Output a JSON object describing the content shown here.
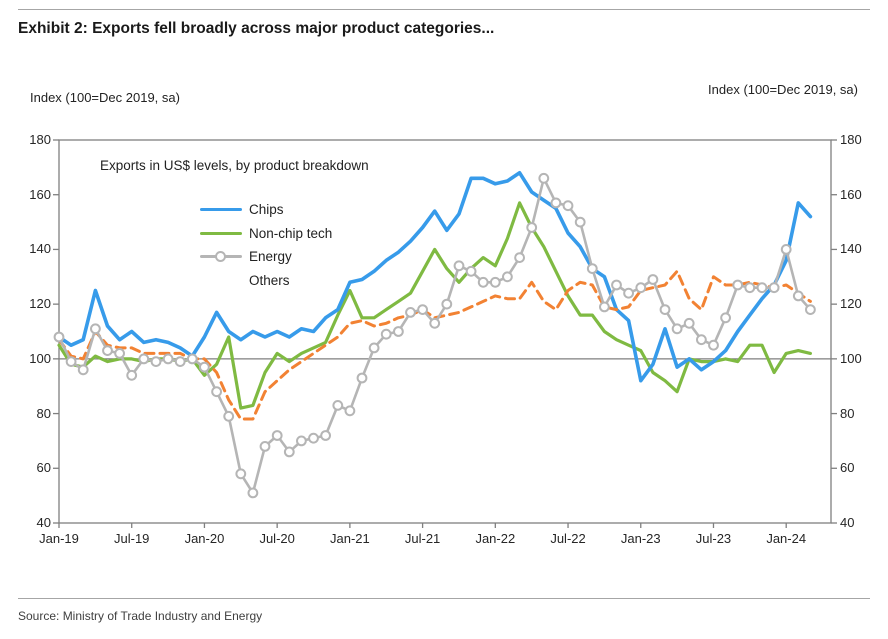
{
  "title": "Exhibit 2: Exports fell broadly across major product categories...",
  "axis_label_left": "Index (100=Dec 2019, sa)",
  "axis_label_right": "Index (100=Dec 2019, sa)",
  "subtitle": "Exports in US$ levels, by product breakdown",
  "source": "Source: Ministry of Trade Industry and Energy",
  "colors": {
    "chips": "#379bea",
    "non_chip_tech": "#7fba42",
    "energy": "#b5b5b5",
    "others": "#f28233",
    "axis": "#7f7f7f",
    "reference_line": "#7f7f7f",
    "text": "#262626"
  },
  "chart_data": {
    "type": "line",
    "title": "Exports in US$ levels, by product breakdown",
    "xlabel": "",
    "ylabel": "Index (100=Dec 2019, sa)",
    "ylim": [
      40,
      180
    ],
    "yticks": [
      40,
      60,
      80,
      100,
      120,
      140,
      160,
      180
    ],
    "reference_line": 100,
    "grid": false,
    "legend_position": "inside-top-left",
    "xticks": [
      "Jan-19",
      "Jul-19",
      "Jan-20",
      "Jul-20",
      "Jan-21",
      "Jul-21",
      "Jan-22",
      "Jul-22",
      "Jan-23",
      "Jul-23",
      "Jan-24"
    ],
    "xtick_month_index": [
      0,
      6,
      12,
      18,
      24,
      30,
      36,
      42,
      48,
      54,
      60
    ],
    "x": [
      "Jan-19",
      "Feb-19",
      "Mar-19",
      "Apr-19",
      "May-19",
      "Jun-19",
      "Jul-19",
      "Aug-19",
      "Sep-19",
      "Oct-19",
      "Nov-19",
      "Dec-19",
      "Jan-20",
      "Feb-20",
      "Mar-20",
      "Apr-20",
      "May-20",
      "Jun-20",
      "Jul-20",
      "Aug-20",
      "Sep-20",
      "Oct-20",
      "Nov-20",
      "Dec-20",
      "Jan-21",
      "Feb-21",
      "Mar-21",
      "Apr-21",
      "May-21",
      "Jun-21",
      "Jul-21",
      "Aug-21",
      "Sep-21",
      "Oct-21",
      "Nov-21",
      "Dec-21",
      "Jan-22",
      "Feb-22",
      "Mar-22",
      "Apr-22",
      "May-22",
      "Jun-22",
      "Jul-22",
      "Aug-22",
      "Sep-22",
      "Oct-22",
      "Nov-22",
      "Dec-22",
      "Jan-23",
      "Feb-23",
      "Mar-23",
      "Apr-23",
      "May-23",
      "Jun-23",
      "Jul-23",
      "Aug-23",
      "Sep-23",
      "Oct-23",
      "Nov-23",
      "Dec-23",
      "Jan-24",
      "Feb-24",
      "Mar-24"
    ],
    "series": [
      {
        "name": "Chips",
        "color": "#379bea",
        "style": "solid",
        "marker": "none",
        "values": [
          108,
          105,
          107,
          125,
          112,
          107,
          110,
          106,
          107,
          106,
          104,
          101,
          108,
          117,
          110,
          107,
          110,
          108,
          110,
          108,
          111,
          110,
          115,
          118,
          128,
          129,
          132,
          136,
          139,
          143,
          148,
          154,
          147,
          153,
          166,
          166,
          164,
          165,
          168,
          161,
          158,
          155,
          146,
          141,
          133,
          130,
          118,
          114,
          92,
          98,
          111,
          97,
          100,
          96,
          99,
          103,
          110,
          116,
          122,
          127,
          136,
          157,
          152
        ]
      },
      {
        "name": "Non-chip tech",
        "color": "#7fba42",
        "style": "solid",
        "marker": "none",
        "values": [
          105,
          98,
          97,
          101,
          99,
          100,
          100,
          99,
          100,
          100,
          99,
          100,
          94,
          98,
          108,
          82,
          83,
          95,
          102,
          99,
          102,
          104,
          106,
          116,
          125,
          115,
          115,
          118,
          121,
          124,
          132,
          140,
          133,
          128,
          133,
          137,
          134,
          144,
          157,
          148,
          141,
          132,
          123,
          116,
          116,
          110,
          107,
          105,
          103,
          95,
          92,
          88,
          100,
          99,
          99,
          100,
          99,
          105,
          105,
          95,
          102,
          103,
          102
        ]
      },
      {
        "name": "Energy",
        "color": "#b5b5b5",
        "style": "solid",
        "marker": "open-circle",
        "values": [
          108,
          99,
          96,
          111,
          103,
          102,
          94,
          100,
          99,
          100,
          99,
          100,
          97,
          88,
          79,
          58,
          51,
          68,
          72,
          66,
          70,
          71,
          72,
          83,
          81,
          93,
          104,
          109,
          110,
          117,
          118,
          113,
          120,
          134,
          132,
          128,
          128,
          130,
          137,
          148,
          166,
          157,
          156,
          150,
          133,
          119,
          127,
          124,
          126,
          129,
          118,
          111,
          113,
          107,
          105,
          115,
          127,
          126,
          126,
          126,
          140,
          123,
          118
        ]
      },
      {
        "name": "Others",
        "color": "#f28233",
        "style": "dashed",
        "marker": "none",
        "values": [
          107,
          101,
          100,
          110,
          105,
          104,
          104,
          102,
          102,
          102,
          102,
          100,
          100,
          95,
          85,
          78,
          78,
          88,
          92,
          96,
          99,
          102,
          105,
          108,
          113,
          114,
          112,
          113,
          115,
          116,
          118,
          115,
          116,
          117,
          119,
          121,
          123,
          122,
          122,
          128,
          121,
          118,
          125,
          128,
          127,
          119,
          118,
          119,
          125,
          126,
          127,
          132,
          122,
          118,
          130,
          127,
          127,
          128,
          127,
          126,
          127,
          124,
          121
        ]
      }
    ]
  }
}
